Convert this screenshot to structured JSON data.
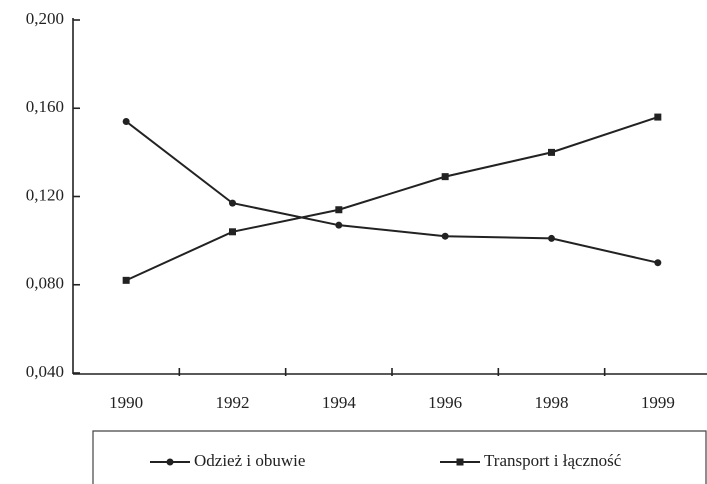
{
  "chart_data": {
    "type": "line",
    "categories": [
      "1990",
      "1992",
      "1994",
      "1996",
      "1998",
      "1999"
    ],
    "series": [
      {
        "name": "Odzież i obuwie",
        "color": "#222222",
        "marker": "circle",
        "values": [
          0.154,
          0.117,
          0.107,
          0.102,
          0.101,
          0.09
        ]
      },
      {
        "name": "Transport i łączność",
        "color": "#222222",
        "marker": "square",
        "values": [
          0.082,
          0.104,
          0.114,
          0.129,
          0.14,
          0.156
        ]
      }
    ],
    "ylim": [
      0.04,
      0.2
    ],
    "yticks": [
      {
        "value": 0.04,
        "label": "0,040"
      },
      {
        "value": 0.08,
        "label": "0,080"
      },
      {
        "value": 0.12,
        "label": "0,120"
      },
      {
        "value": 0.16,
        "label": "0,160"
      },
      {
        "value": 0.2,
        "label": "0,200"
      }
    ],
    "grid": false,
    "legend": "bottom"
  }
}
